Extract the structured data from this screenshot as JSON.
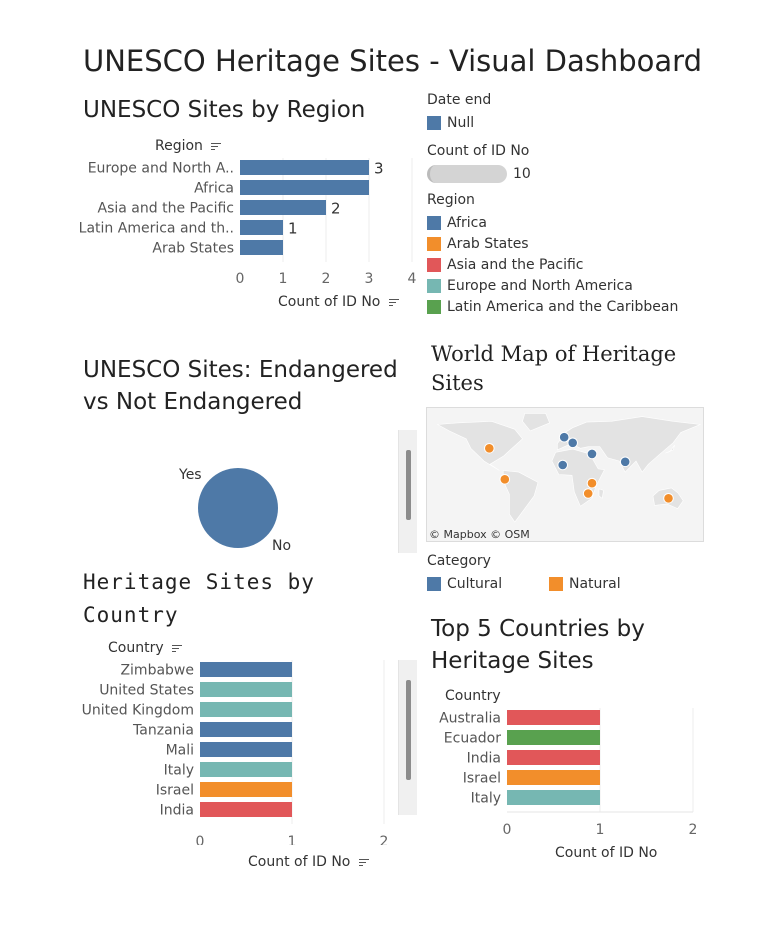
{
  "dashboard": {
    "title": "UNESCO Heritage Sites - Visual Dashboard"
  },
  "colors": {
    "Africa": "#4e79a7",
    "Arab States": "#f28e2b",
    "Asia and the Pacific": "#e15759",
    "Europe and North America": "#76b7b2",
    "Latin America and the Caribbean": "#59a14f",
    "Cultural": "#4e79a7",
    "Natural": "#f28e2b"
  },
  "region_chart": {
    "title": "UNESCO Sites by Region",
    "header": "Region",
    "xlabel": "Count of ID No",
    "sort_icon": "sort-icon"
  },
  "legends": {
    "date_end": {
      "title": "Date end",
      "items": [
        {
          "label": "Null",
          "color": "#4e79a7"
        }
      ]
    },
    "count": {
      "title": "Count of ID No",
      "value": "10"
    },
    "region": {
      "title": "Region",
      "items": [
        {
          "label": "Africa",
          "color": "#4e79a7"
        },
        {
          "label": "Arab States",
          "color": "#f28e2b"
        },
        {
          "label": "Asia and the Pacific",
          "color": "#e15759"
        },
        {
          "label": "Europe and North America",
          "color": "#76b7b2"
        },
        {
          "label": "Latin America and the Caribbean",
          "color": "#59a14f"
        }
      ]
    },
    "category": {
      "title": "Category",
      "items": [
        {
          "label": "Cultural",
          "color": "#4e79a7"
        },
        {
          "label": "Natural",
          "color": "#f28e2b"
        }
      ]
    }
  },
  "endangered_chart": {
    "title": "UNESCO Sites: Endangered vs Not Endangered"
  },
  "map": {
    "title": "World Map of Heritage Sites",
    "attribution": "© Mapbox © OSM",
    "points": [
      {
        "lon": -98,
        "lat": 38,
        "category": "Natural"
      },
      {
        "lon": -78,
        "lat": -1,
        "category": "Natural"
      },
      {
        "lon": -1,
        "lat": 52,
        "category": "Cultural"
      },
      {
        "lon": 10,
        "lat": 45,
        "category": "Cultural"
      },
      {
        "lon": 35,
        "lat": 31,
        "category": "Cultural"
      },
      {
        "lon": -3,
        "lat": 17,
        "category": "Cultural"
      },
      {
        "lon": 78,
        "lat": 21,
        "category": "Cultural"
      },
      {
        "lon": 35,
        "lat": -6,
        "category": "Natural"
      },
      {
        "lon": 30,
        "lat": -19,
        "category": "Natural"
      },
      {
        "lon": 134,
        "lat": -25,
        "category": "Natural"
      }
    ]
  },
  "country_chart": {
    "title": "Heritage Sites by Country",
    "header": "Country",
    "xlabel": "Count of ID No"
  },
  "top5_chart": {
    "title": "Top 5 Countries by Heritage Sites",
    "header": "Country",
    "xlabel": "Count of ID No"
  },
  "chart_data": [
    {
      "type": "bar",
      "title": "UNESCO Sites by Region",
      "categories": [
        "Europe and North A..",
        "Africa",
        "Asia and the Pacific",
        "Latin America and th..",
        "Arab States"
      ],
      "values": [
        3,
        3,
        2,
        1,
        1
      ],
      "data_labels": [
        "3",
        "",
        "2",
        "1",
        ""
      ],
      "colors": [
        "#4e79a7",
        "#4e79a7",
        "#4e79a7",
        "#4e79a7",
        "#4e79a7"
      ],
      "xlabel": "Count of ID No",
      "ylabel": "Region",
      "xlim": [
        0,
        4
      ],
      "xticks": [
        0,
        1,
        2,
        3,
        4
      ]
    },
    {
      "type": "pie",
      "title": "UNESCO Sites: Endangered vs Not Endangered",
      "categories": [
        "Yes",
        "No"
      ],
      "values": [
        0,
        10
      ],
      "colors": [
        "#4e79a7",
        "#4e79a7"
      ]
    },
    {
      "type": "bar",
      "title": "Heritage Sites by Country",
      "categories": [
        "Zimbabwe",
        "United States",
        "United Kingdom",
        "Tanzania",
        "Mali",
        "Italy",
        "Israel",
        "India"
      ],
      "values": [
        1,
        1,
        1,
        1,
        1,
        1,
        1,
        1
      ],
      "colors": [
        "#4e79a7",
        "#76b7b2",
        "#76b7b2",
        "#4e79a7",
        "#4e79a7",
        "#76b7b2",
        "#f28e2b",
        "#e15759"
      ],
      "xlabel": "Count of ID No",
      "ylabel": "Country",
      "xlim": [
        0,
        2
      ],
      "xticks": [
        0,
        1,
        2
      ]
    },
    {
      "type": "bar",
      "title": "Top 5 Countries by Heritage Sites",
      "categories": [
        "Australia",
        "Ecuador",
        "India",
        "Israel",
        "Italy"
      ],
      "values": [
        1,
        1,
        1,
        1,
        1
      ],
      "colors": [
        "#e15759",
        "#59a14f",
        "#e15759",
        "#f28e2b",
        "#76b7b2"
      ],
      "xlabel": "Count of ID No",
      "ylabel": "Country",
      "xlim": [
        0,
        2
      ],
      "xticks": [
        0,
        1,
        2
      ]
    }
  ]
}
